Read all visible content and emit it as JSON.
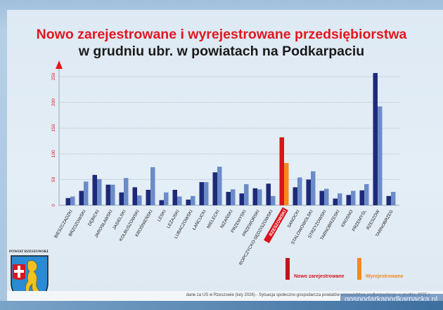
{
  "title_line1": "Nowo zarejestrowane i wyrejestrowane przedsiębiorstwa",
  "title_line2": "w grudniu ubr. w powiatach na Podkarpaciu",
  "logo_text": "POWIAT RZESZOWSKI",
  "source": "dane za US w Rzeszowie (luty 2026) - Sytuacja społeczno-gospodarcza powiatów województwa podkarpackiego w grudniu 2025 r.",
  "watermark": "gospodarkapodkarpacka.pl",
  "colors": {
    "new": "#1e2a78",
    "removed": "#6b8cc9",
    "highlight_new": "#d9141c",
    "highlight_removed": "#f28a1e",
    "axis_text": "#e3171f"
  },
  "chart_data": {
    "type": "bar",
    "title": "Nowo zarejestrowane i wyrejestrowane przedsiębiorstwa w grudniu ubr. w powiatach na Podkarpaciu",
    "xlabel": "",
    "ylabel": "",
    "ylim": [
      0,
      250
    ],
    "yticks": [
      "0",
      "50",
      "100",
      "150",
      "200",
      "250"
    ],
    "grid": true,
    "legend_position": "bottom-right",
    "highlight": "RZESZOWSKI",
    "categories": [
      "BIESZCZADZKI",
      "BRZOZOWSKI",
      "DĘBICKI",
      "JAROSŁAWSKI",
      "JASIELSKI",
      "KOLBUSZOWSKI",
      "KROŚNIEŃSKI",
      "LESKI",
      "LEŻAJSKI",
      "LUBACZOWSKI",
      "ŁAŃCUCKI",
      "MIELECKI",
      "NIŻAŃSKI",
      "PRZEMYSKI",
      "PRZEWORSKI",
      "ROPCZYCKO-SĘDZISZOWSKI",
      "RZESZOWSKI",
      "SANOCKI",
      "STALOWOWOLSKI",
      "STRZYŻOWSKI",
      "TARNOBRZESKI",
      "KROSNO",
      "PRZEMYŚL",
      "RZESZÓW",
      "TARNOBRZEG"
    ],
    "series": [
      {
        "name": "Nowo zarejestrowane",
        "values": [
          14,
          28,
          59,
          40,
          25,
          35,
          30,
          10,
          30,
          11,
          45,
          64,
          26,
          23,
          33,
          42,
          132,
          35,
          50,
          28,
          13,
          20,
          29,
          257,
          18
        ]
      },
      {
        "name": "Wyrejestrowane",
        "values": [
          17,
          46,
          51,
          40,
          53,
          19,
          74,
          25,
          17,
          18,
          45,
          75,
          31,
          41,
          31,
          18,
          82,
          54,
          66,
          32,
          23,
          28,
          41,
          192,
          26
        ]
      }
    ]
  }
}
